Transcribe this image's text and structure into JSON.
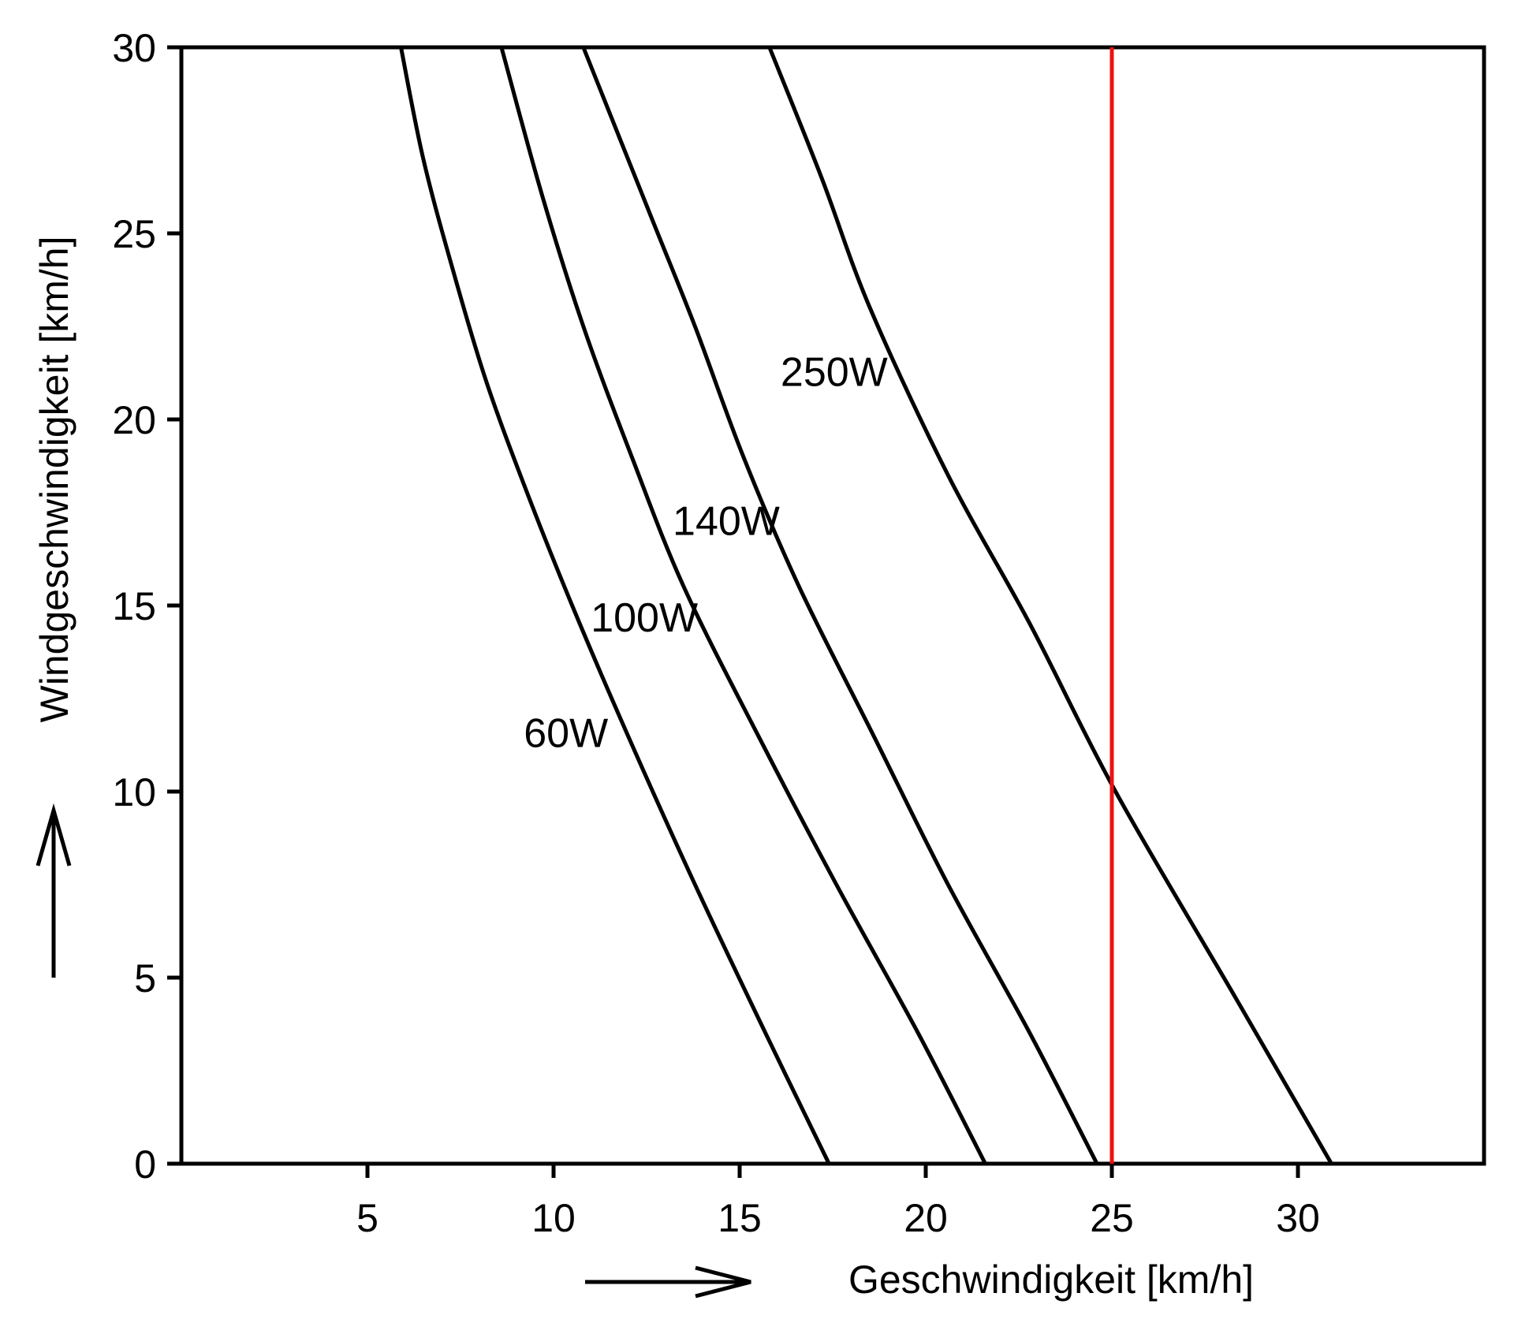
{
  "chart_data": {
    "type": "line",
    "xlabel": "Geschwindigkeit [km/h]",
    "ylabel": "Windgeschwindigkeit [km/h]",
    "xlim": [
      0,
      35
    ],
    "ylim": [
      0,
      30
    ],
    "xticks": [
      5,
      10,
      15,
      20,
      25,
      30
    ],
    "yticks": [
      0,
      5,
      10,
      15,
      20,
      25,
      30
    ],
    "grid": false,
    "legend": "none",
    "series": [
      {
        "name": "60W",
        "label_at": [
          9.2,
          11.2
        ],
        "x": [
          17.4,
          15.7,
          13.8,
          12.0,
          10.5,
          9.3,
          8.2,
          7.3,
          6.5,
          5.9
        ],
        "y": [
          0,
          3.5,
          7.5,
          11.5,
          15.0,
          18.0,
          21.0,
          24.0,
          27.0,
          30.0
        ],
        "color": "#000000"
      },
      {
        "name": "100W",
        "label_at": [
          11.0,
          14.3
        ],
        "x": [
          21.6,
          19.8,
          17.6,
          15.5,
          13.5,
          12.1,
          10.8,
          9.7,
          8.6
        ],
        "y": [
          0,
          3.5,
          7.5,
          11.5,
          15.5,
          19.0,
          22.5,
          26.0,
          30.0
        ],
        "color": "#000000"
      },
      {
        "name": "140W",
        "label_at": [
          13.2,
          16.9
        ],
        "x": [
          24.6,
          22.8,
          20.6,
          18.6,
          16.6,
          15.1,
          13.8,
          12.6,
          10.8
        ],
        "y": [
          0,
          3.5,
          7.5,
          11.5,
          15.5,
          19.0,
          22.5,
          25.5,
          30.0
        ],
        "color": "#000000"
      },
      {
        "name": "250W",
        "label_at": [
          16.1,
          20.9
        ],
        "x": [
          30.9,
          28.3,
          25.1,
          22.8,
          20.6,
          18.5,
          17.2,
          15.8
        ],
        "y": [
          0,
          4.5,
          10.0,
          14.5,
          18.5,
          23.0,
          26.5,
          30.0
        ],
        "color": "#000000"
      }
    ],
    "reference_lines": [
      {
        "type": "vertical",
        "x": 25,
        "color": "#ee1111"
      }
    ]
  }
}
